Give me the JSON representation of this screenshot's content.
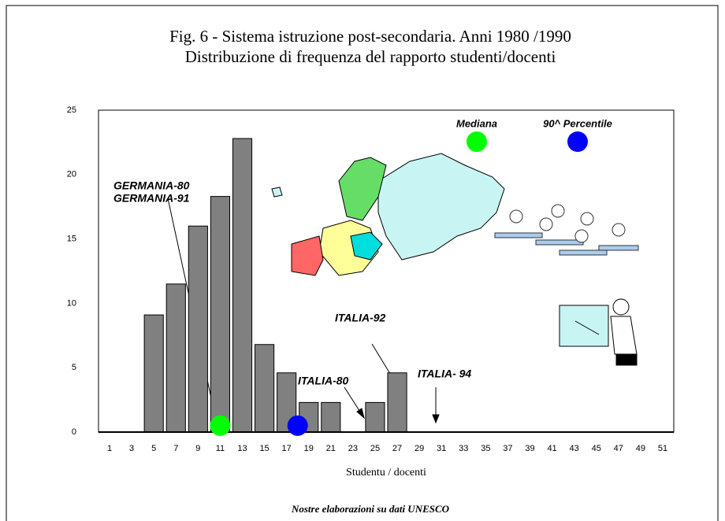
{
  "chart_data": {
    "type": "bar",
    "title": "Fig. 6 - Sistema istruzione post-secondaria.  Anni 1980 /1990",
    "subtitle": "Distribuzione di frequenza del rapporto studenti/docenti",
    "xlabel": "Studentu / docenti",
    "source": "Nostre elaborazioni su dati UNESCO",
    "categories": [
      1,
      3,
      5,
      7,
      9,
      11,
      13,
      15,
      17,
      19,
      21,
      23,
      25,
      27,
      29,
      31,
      33,
      35,
      37,
      39,
      41,
      43,
      45,
      47,
      49,
      51
    ],
    "values": [
      0,
      0,
      9.1,
      11.5,
      16,
      18.3,
      22.8,
      6.8,
      4.6,
      2.3,
      2.3,
      0,
      2.3,
      4.6,
      0,
      0,
      0,
      0,
      0,
      0,
      0,
      0,
      0,
      0,
      0,
      0
    ],
    "color": "#808080",
    "ylim": [
      0,
      25
    ],
    "yticks": [
      0,
      5,
      10,
      15,
      20,
      25
    ],
    "grid": false,
    "markers": [
      {
        "name": "Mediana",
        "x": 11,
        "y": 0.5,
        "color": "#00ff00"
      },
      {
        "name": "90^ Percentile",
        "x": 18,
        "y": 0.5,
        "color": "#0000ff"
      }
    ],
    "annotations": [
      "GERMANIA-80",
      "GERMANIA-91",
      "ITALIA-92",
      "ITALIA-80",
      "ITALIA- 94"
    ]
  }
}
